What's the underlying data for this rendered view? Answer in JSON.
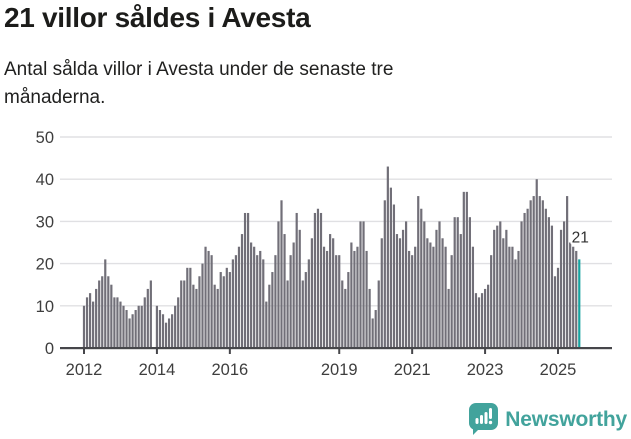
{
  "header": {
    "title": "21 villor såldes i Avesta",
    "subtitle": "Antal sålda villor i Avesta under de senaste tre månaderna.",
    "subtitle_lines": [
      "Antal sålda villor i Avesta under de senaste tre",
      "månaderna."
    ]
  },
  "chart_data": {
    "type": "bar",
    "title": "21 villor såldes i Avesta",
    "subtitle": "Antal sålda villor i Avesta under de senaste tre månaderna.",
    "x_start": "2012-01",
    "x_end": "2025-08",
    "x_unit": "month",
    "ylim": [
      0,
      50
    ],
    "yticks": [
      0,
      10,
      20,
      30,
      40,
      50
    ],
    "grid": true,
    "legend": false,
    "xticks": [
      {
        "label": "2012",
        "index": 0
      },
      {
        "label": "2014",
        "index": 24
      },
      {
        "label": "2016",
        "index": 48
      },
      {
        "label": "2019",
        "index": 84
      },
      {
        "label": "2021",
        "index": 108
      },
      {
        "label": "2023",
        "index": 132
      },
      {
        "label": "2025",
        "index": 156
      }
    ],
    "values": [
      10,
      12,
      13,
      11,
      14,
      16,
      17,
      21,
      17,
      15,
      12,
      12,
      11,
      10,
      9,
      7,
      8,
      9,
      10,
      10,
      12,
      14,
      16,
      0,
      10,
      9,
      8,
      6,
      7,
      8,
      10,
      12,
      16,
      16,
      19,
      19,
      15,
      14,
      17,
      20,
      24,
      23,
      22,
      15,
      14,
      18,
      17,
      19,
      18,
      21,
      22,
      24,
      27,
      32,
      32,
      25,
      24,
      22,
      23,
      21,
      11,
      15,
      18,
      22,
      30,
      35,
      27,
      16,
      22,
      25,
      32,
      28,
      16,
      18,
      21,
      26,
      32,
      33,
      32,
      24,
      23,
      27,
      26,
      22,
      22,
      16,
      14,
      18,
      25,
      23,
      24,
      30,
      30,
      23,
      14,
      7,
      9,
      16,
      26,
      35,
      43,
      38,
      34,
      27,
      26,
      28,
      30,
      23,
      22,
      24,
      36,
      33,
      30,
      26,
      25,
      24,
      28,
      30,
      26,
      24,
      14,
      22,
      31,
      31,
      27,
      37,
      37,
      31,
      24,
      13,
      12,
      13,
      14,
      15,
      22,
      28,
      29,
      30,
      26,
      28,
      24,
      24,
      21,
      23,
      30,
      32,
      33,
      35,
      36,
      40,
      36,
      35,
      33,
      31,
      29,
      17,
      19,
      28,
      30,
      36,
      25,
      24,
      23,
      21
    ],
    "highlight_last": true,
    "annotation": {
      "label": "21",
      "value": 21
    },
    "colors": {
      "bar": "#716f78",
      "highlight": "#16a3a0",
      "axis": "#46464a",
      "grid": "#e0e0e3",
      "tick_text": "#3e3e3e",
      "annotation_text": "#303030"
    }
  },
  "footer": {
    "brand": "Newsworthy",
    "brand_color": "#42a39c"
  }
}
